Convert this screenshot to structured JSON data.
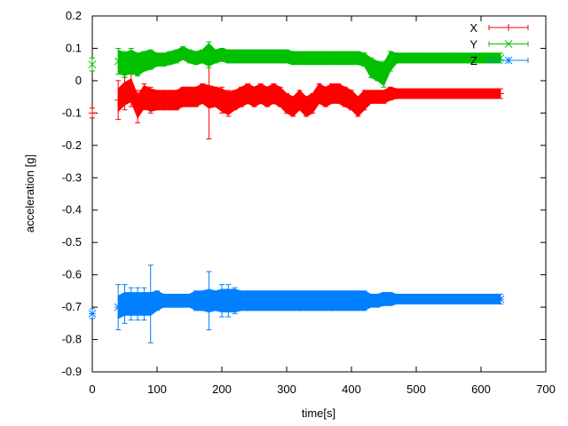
{
  "chart_data": {
    "type": "scatter",
    "title": "",
    "xlabel": "time[s]",
    "ylabel": "acceleration [g]",
    "xlim": [
      0,
      700
    ],
    "ylim": [
      -0.9,
      0.2
    ],
    "xticks": [
      0,
      100,
      200,
      300,
      400,
      500,
      600,
      700
    ],
    "yticks": [
      0.2,
      0.1,
      0,
      -0.1,
      -0.2,
      -0.3,
      -0.4,
      -0.5,
      -0.6,
      -0.7,
      -0.8,
      -0.9
    ],
    "grid": false,
    "legend_position": "top-right",
    "x": [
      0,
      40,
      50,
      60,
      70,
      80,
      90,
      100,
      110,
      120,
      130,
      140,
      150,
      160,
      170,
      180,
      190,
      200,
      210,
      220,
      230,
      240,
      250,
      260,
      270,
      280,
      290,
      300,
      310,
      320,
      330,
      340,
      350,
      360,
      370,
      380,
      390,
      400,
      410,
      420,
      430,
      440,
      450,
      460,
      470,
      480,
      490,
      500,
      510,
      520,
      530,
      540,
      550,
      560,
      570,
      580,
      590,
      600,
      610,
      620,
      630
    ],
    "series": [
      {
        "name": "X",
        "color": "#ff0000",
        "marker": "+",
        "y": [
          -0.1,
          -0.06,
          -0.04,
          -0.03,
          -0.08,
          -0.05,
          -0.06,
          -0.06,
          -0.06,
          -0.06,
          -0.06,
          -0.05,
          -0.05,
          -0.05,
          -0.04,
          -0.05,
          -0.05,
          -0.06,
          -0.07,
          -0.06,
          -0.05,
          -0.04,
          -0.05,
          -0.04,
          -0.05,
          -0.04,
          -0.05,
          -0.07,
          -0.08,
          -0.06,
          -0.08,
          -0.07,
          -0.04,
          -0.05,
          -0.04,
          -0.04,
          -0.05,
          -0.06,
          -0.08,
          -0.06,
          -0.05,
          -0.05,
          -0.05,
          -0.04,
          -0.04,
          -0.04,
          -0.04,
          -0.04,
          -0.04,
          -0.04,
          -0.04,
          -0.04,
          -0.04,
          -0.04,
          -0.04,
          -0.04,
          -0.04,
          -0.04,
          -0.04,
          -0.04,
          -0.04
        ],
        "yerr": [
          0.015,
          0.06,
          0.05,
          0.05,
          0.05,
          0.04,
          0.04,
          0.03,
          0.03,
          0.03,
          0.03,
          0.03,
          0.03,
          0.03,
          0.03,
          0.13,
          0.03,
          0.04,
          0.04,
          0.03,
          0.03,
          0.03,
          0.03,
          0.03,
          0.03,
          0.03,
          0.03,
          0.03,
          0.03,
          0.03,
          0.03,
          0.03,
          0.03,
          0.03,
          0.03,
          0.03,
          0.03,
          0.03,
          0.03,
          0.03,
          0.02,
          0.02,
          0.02,
          0.02,
          0.015,
          0.015,
          0.015,
          0.015,
          0.015,
          0.015,
          0.015,
          0.015,
          0.015,
          0.015,
          0.015,
          0.015,
          0.015,
          0.015,
          0.015,
          0.015,
          0.015
        ]
      },
      {
        "name": "Y",
        "color": "#00c000",
        "marker": "x",
        "y": [
          0.05,
          0.06,
          0.05,
          0.06,
          0.05,
          0.06,
          0.065,
          0.065,
          0.065,
          0.07,
          0.075,
          0.085,
          0.075,
          0.07,
          0.075,
          0.08,
          0.075,
          0.08,
          0.075,
          0.075,
          0.075,
          0.075,
          0.075,
          0.075,
          0.075,
          0.075,
          0.075,
          0.075,
          0.07,
          0.07,
          0.07,
          0.07,
          0.07,
          0.07,
          0.07,
          0.07,
          0.07,
          0.07,
          0.07,
          0.065,
          0.04,
          0.03,
          0.02,
          0.06,
          0.07,
          0.07,
          0.07,
          0.07,
          0.07,
          0.07,
          0.07,
          0.07,
          0.07,
          0.07,
          0.07,
          0.07,
          0.07,
          0.07,
          0.07,
          0.07,
          0.07
        ],
        "yerr": [
          0.02,
          0.04,
          0.04,
          0.04,
          0.035,
          0.03,
          0.03,
          0.02,
          0.02,
          0.02,
          0.02,
          0.02,
          0.02,
          0.02,
          0.02,
          0.04,
          0.02,
          0.02,
          0.02,
          0.02,
          0.02,
          0.02,
          0.02,
          0.02,
          0.02,
          0.02,
          0.02,
          0.02,
          0.02,
          0.02,
          0.02,
          0.02,
          0.02,
          0.02,
          0.02,
          0.02,
          0.02,
          0.02,
          0.02,
          0.02,
          0.03,
          0.03,
          0.04,
          0.03,
          0.015,
          0.015,
          0.015,
          0.015,
          0.015,
          0.015,
          0.015,
          0.015,
          0.015,
          0.015,
          0.015,
          0.015,
          0.015,
          0.015,
          0.015,
          0.015,
          0.015
        ]
      },
      {
        "name": "Z",
        "color": "#0080ff",
        "marker": "*",
        "y": [
          -0.72,
          -0.7,
          -0.69,
          -0.69,
          -0.69,
          -0.69,
          -0.69,
          -0.68,
          -0.68,
          -0.68,
          -0.68,
          -0.68,
          -0.68,
          -0.68,
          -0.68,
          -0.68,
          -0.68,
          -0.68,
          -0.68,
          -0.68,
          -0.68,
          -0.68,
          -0.68,
          -0.68,
          -0.68,
          -0.68,
          -0.68,
          -0.68,
          -0.68,
          -0.68,
          -0.68,
          -0.68,
          -0.68,
          -0.68,
          -0.68,
          -0.68,
          -0.68,
          -0.68,
          -0.68,
          -0.68,
          -0.68,
          -0.68,
          -0.675,
          -0.675,
          -0.675,
          -0.675,
          -0.675,
          -0.675,
          -0.675,
          -0.675,
          -0.675,
          -0.675,
          -0.675,
          -0.675,
          -0.675,
          -0.675,
          -0.675,
          -0.675,
          -0.675,
          -0.675,
          -0.675
        ],
        "yerr": [
          0.015,
          0.07,
          0.06,
          0.05,
          0.05,
          0.05,
          0.12,
          0.03,
          0.02,
          0.02,
          0.02,
          0.02,
          0.02,
          0.03,
          0.03,
          0.09,
          0.03,
          0.05,
          0.05,
          0.04,
          0.03,
          0.03,
          0.03,
          0.03,
          0.03,
          0.03,
          0.03,
          0.03,
          0.03,
          0.03,
          0.03,
          0.03,
          0.03,
          0.03,
          0.03,
          0.03,
          0.03,
          0.03,
          0.03,
          0.03,
          0.02,
          0.02,
          0.02,
          0.02,
          0.015,
          0.015,
          0.015,
          0.015,
          0.015,
          0.015,
          0.015,
          0.015,
          0.015,
          0.015,
          0.015,
          0.015,
          0.015,
          0.015,
          0.015,
          0.015,
          0.015
        ]
      }
    ]
  }
}
